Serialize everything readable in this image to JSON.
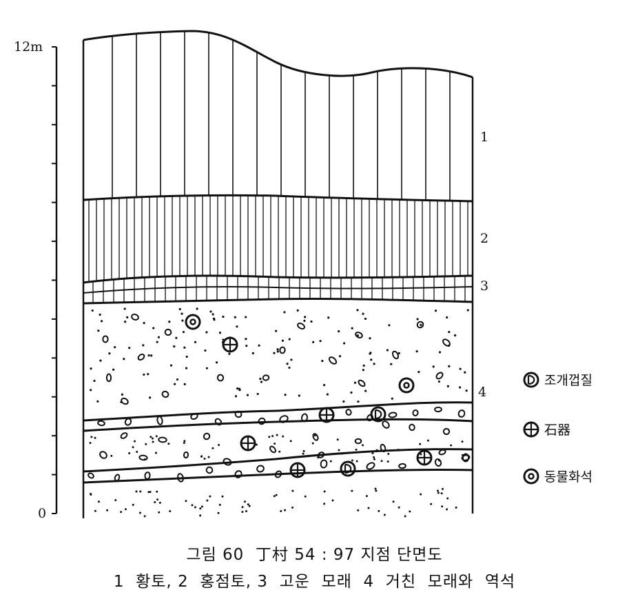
{
  "axis": {
    "top_label": "12m",
    "bottom_label": "0"
  },
  "layer_labels": [
    "1",
    "2",
    "3",
    "4"
  ],
  "legend": [
    {
      "icon": "shell-symbol-icon",
      "label": "조개껍질"
    },
    {
      "icon": "stone-tool-symbol-icon",
      "label": "石器"
    },
    {
      "icon": "animal-fossil-symbol-icon",
      "label": "동물화석"
    }
  ],
  "caption": {
    "title": "그림 60  丁村 54 : 97 지점 단면도",
    "legend_line": "1  황토, 2  홍점토, 3  고운  모래  4  거친  모래와  역석"
  }
}
